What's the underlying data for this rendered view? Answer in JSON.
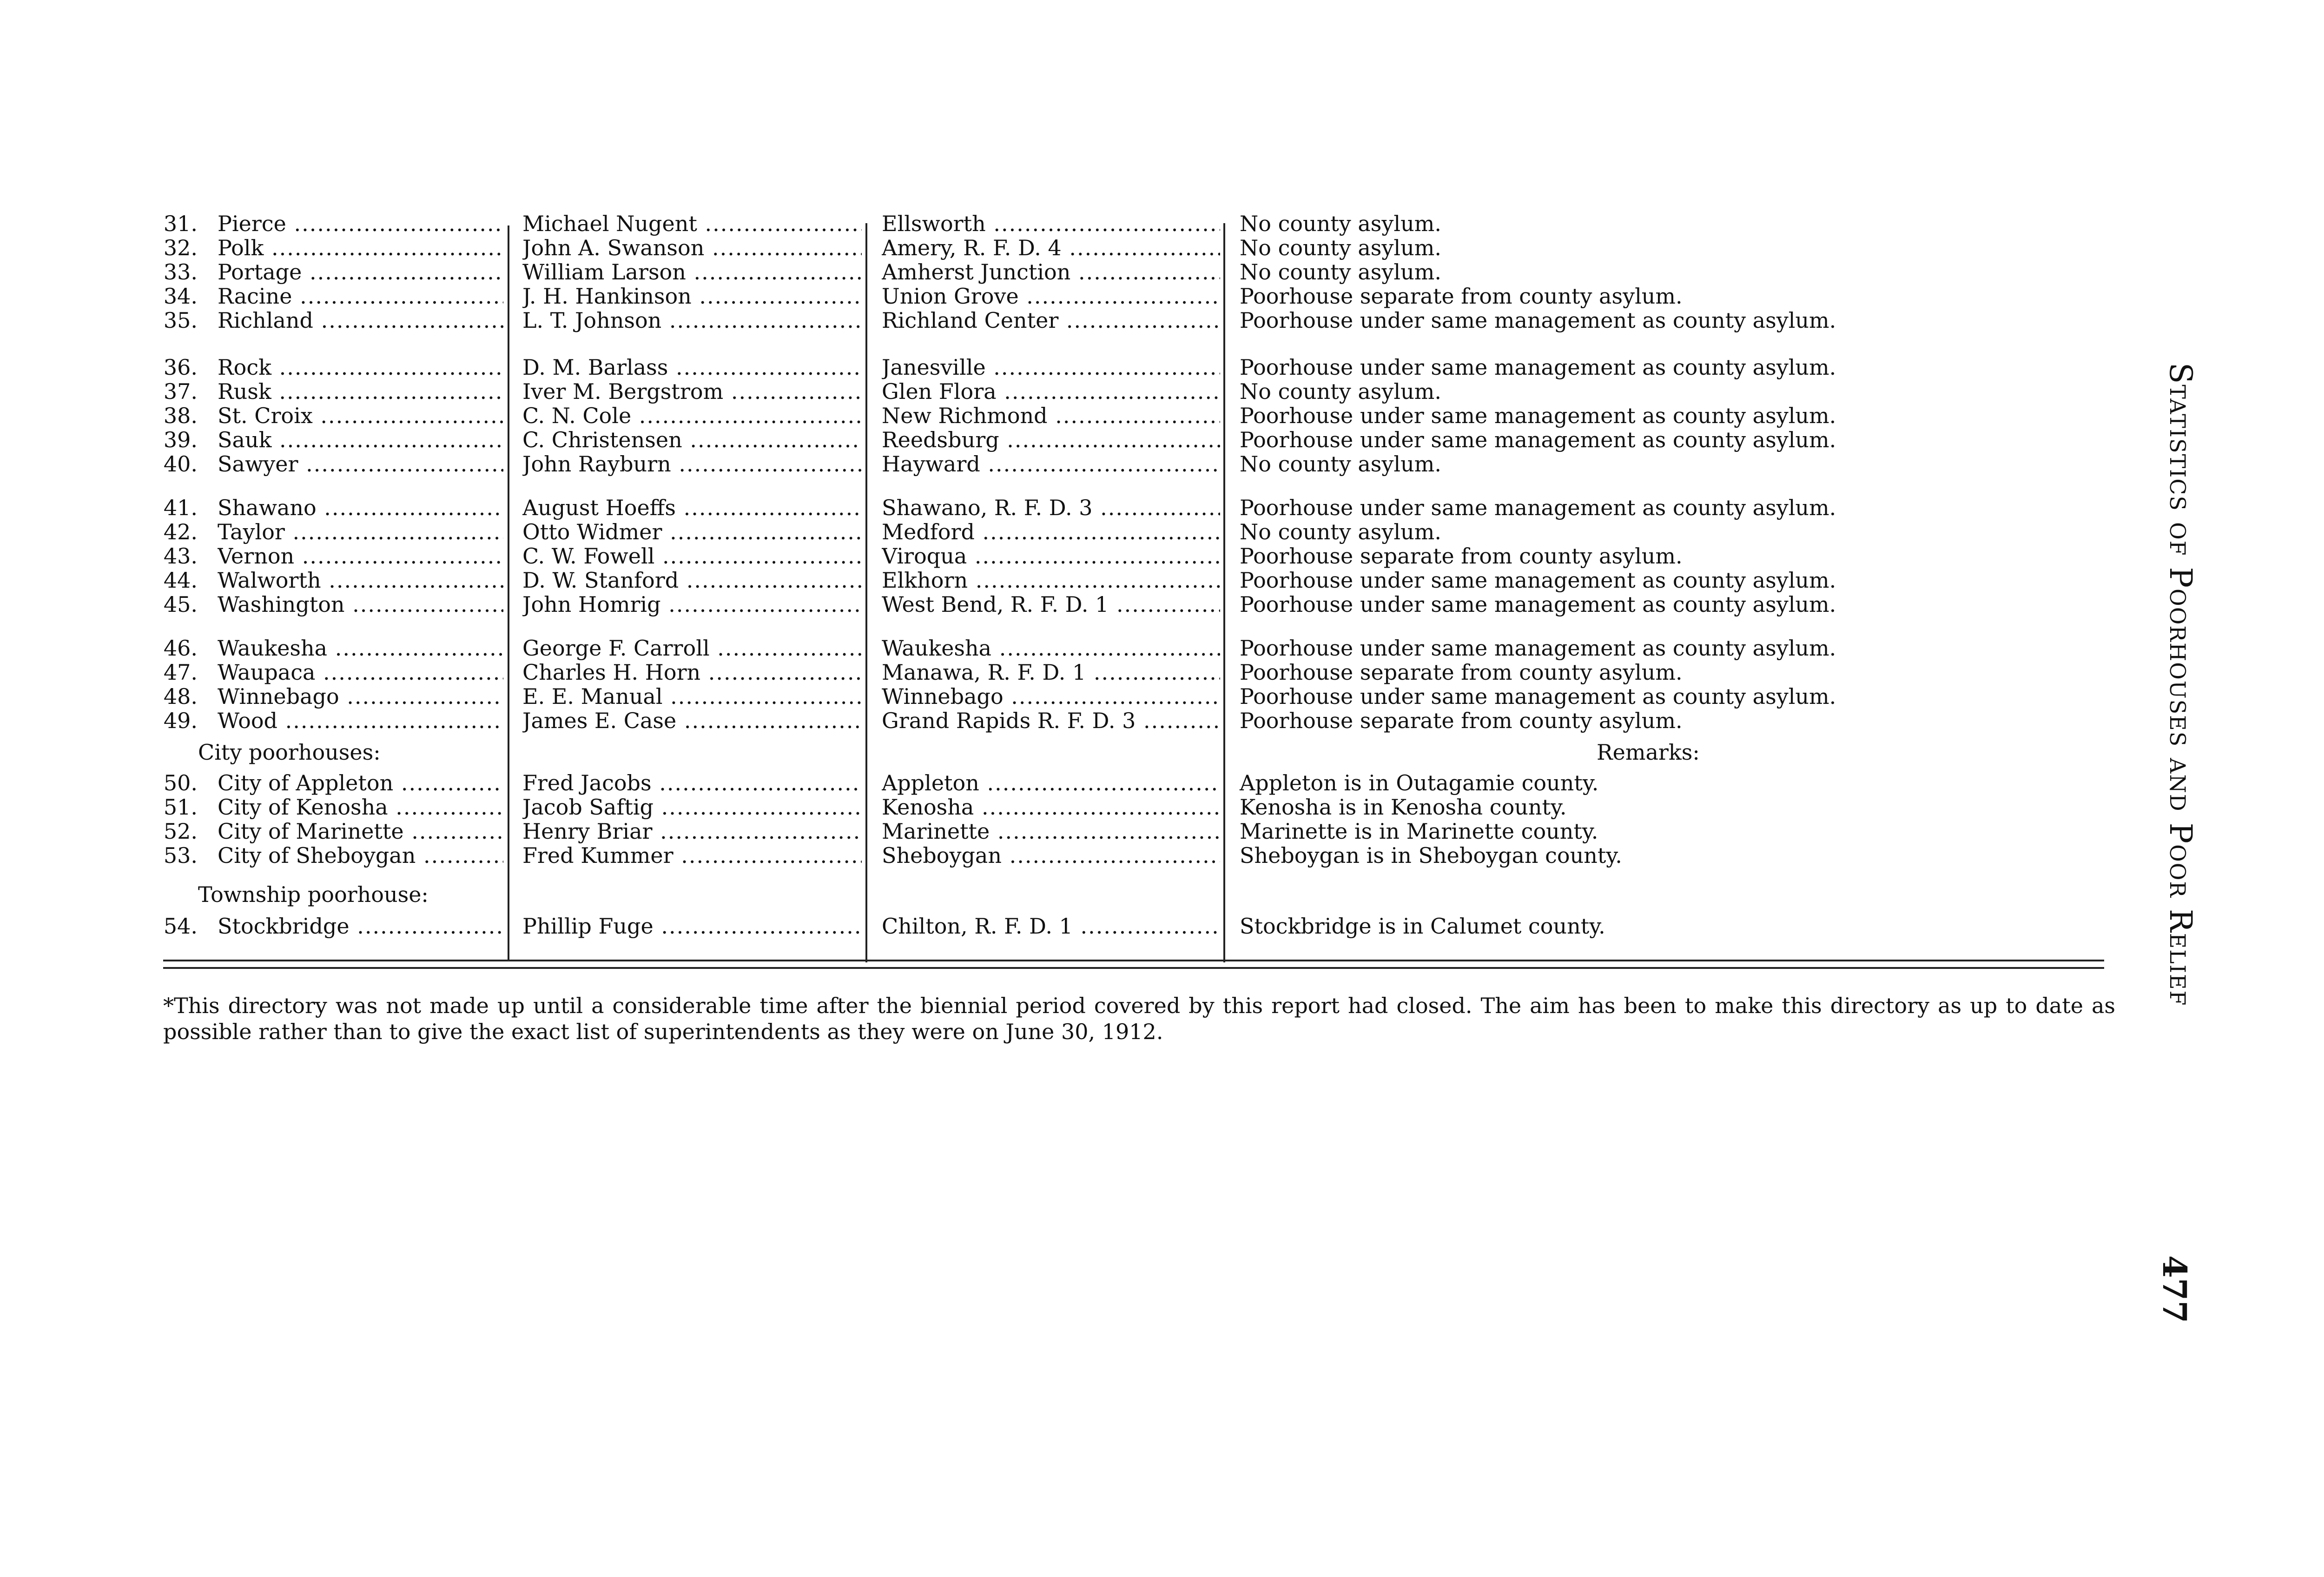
{
  "running_title": "Statistics of Poorhouses and Poor Relief",
  "page_number": "477",
  "remarks_header": "Remarks:",
  "city_heading": "City poorhouses:",
  "township_heading": "Township poorhouse:",
  "entries": [
    {
      "number": "31.",
      "county": "Pierce",
      "superintendent": "Michael Nugent",
      "post_office": "Ellsworth",
      "remark": "No county asylum."
    },
    {
      "number": "32.",
      "county": "Polk",
      "superintendent": "John A. Swanson",
      "post_office": "Amery, R. F. D. 4",
      "remark": "No county asylum."
    },
    {
      "number": "33.",
      "county": "Portage",
      "superintendent": "William Larson",
      "post_office": "Amherst Junction",
      "remark": "No county asylum."
    },
    {
      "number": "34.",
      "county": "Racine",
      "superintendent": "J. H. Hankinson",
      "post_office": "Union Grove",
      "remark": "Poorhouse separate from county asylum."
    },
    {
      "number": "35.",
      "county": "Richland",
      "superintendent": "L. T. Johnson",
      "post_office": "Richland Center",
      "remark": "Poorhouse under same management as county asylum."
    },
    {
      "number": "36.",
      "county": "Rock",
      "superintendent": "D. M. Barlass",
      "post_office": "Janesville",
      "remark": "Poorhouse under same management as county asylum."
    },
    {
      "number": "37.",
      "county": "Rusk",
      "superintendent": "Iver M. Bergstrom",
      "post_office": "Glen Flora",
      "remark": "No county asylum."
    },
    {
      "number": "38.",
      "county": "St. Croix",
      "superintendent": "C. N. Cole",
      "post_office": "New Richmond",
      "remark": "Poorhouse under same management as county asylum."
    },
    {
      "number": "39.",
      "county": "Sauk",
      "superintendent": "C. Christensen",
      "post_office": "Reedsburg",
      "remark": "Poorhouse under same management as county asylum."
    },
    {
      "number": "40.",
      "county": "Sawyer",
      "superintendent": "John Rayburn",
      "post_office": "Hayward",
      "remark": "No county asylum."
    },
    {
      "number": "41.",
      "county": "Shawano",
      "superintendent": "August Hoeffs",
      "post_office": "Shawano, R. F. D. 3",
      "remark": "Poorhouse under same management as county asylum."
    },
    {
      "number": "42.",
      "county": "Taylor",
      "superintendent": "Otto Widmer",
      "post_office": "Medford",
      "remark": "No county asylum."
    },
    {
      "number": "43.",
      "county": "Vernon",
      "superintendent": "C. W. Fowell",
      "post_office": "Viroqua",
      "remark": "Poorhouse separate from county asylum."
    },
    {
      "number": "44.",
      "county": "Walworth",
      "superintendent": "D. W. Stanford",
      "post_office": "Elkhorn",
      "remark": "Poorhouse under same management as county asylum."
    },
    {
      "number": "45.",
      "county": "Washington",
      "superintendent": "John Homrig",
      "post_office": "West Bend, R. F. D. 1",
      "remark": "Poorhouse under same management as county asylum."
    },
    {
      "number": "46.",
      "county": "Waukesha",
      "superintendent": "George F. Carroll",
      "post_office": "Waukesha",
      "remark": "Poorhouse under same management as county asylum."
    },
    {
      "number": "47.",
      "county": "Waupaca",
      "superintendent": "Charles H. Horn",
      "post_office": "Manawa, R. F. D. 1",
      "remark": "Poorhouse separate from county asylum."
    },
    {
      "number": "48.",
      "county": "Winnebago",
      "superintendent": "E. E. Manual",
      "post_office": "Winnebago",
      "remark": "Poorhouse under same management as county asylum."
    },
    {
      "number": "49.",
      "county": "Wood",
      "superintendent": "James E. Case",
      "post_office": "Grand Rapids R. F. D. 3",
      "remark": "Poorhouse separate from county asylum."
    },
    {
      "number": "50.",
      "county": "City of Appleton",
      "superintendent": "Fred Jacobs",
      "post_office": "Appleton",
      "remark": "Appleton is in Outagamie county."
    },
    {
      "number": "51.",
      "county": "City of Kenosha",
      "superintendent": "Jacob Saftig",
      "post_office": "Kenosha",
      "remark": "Kenosha is in Kenosha county."
    },
    {
      "number": "52.",
      "county": "City of Marinette",
      "superintendent": "Henry Briar",
      "post_office": "Marinette",
      "remark": "Marinette is in Marinette county."
    },
    {
      "number": "53.",
      "county": "City of Sheboygan",
      "superintendent": "Fred Kummer",
      "post_office": "Sheboygan",
      "remark": "Sheboygan is in Sheboygan county."
    },
    {
      "number": "54.",
      "county": "Stockbridge",
      "superintendent": "Phillip Fuge",
      "post_office": "Chilton, R. F. D. 1",
      "remark": "Stockbridge is in Calumet county."
    }
  ],
  "footnote": "*This directory was not made up until a considerable time after the biennial period covered by this report had closed. The aim has been to make this directory as up to date as possible rather than to give the exact list of superintendents as they were on June 30, 1912."
}
